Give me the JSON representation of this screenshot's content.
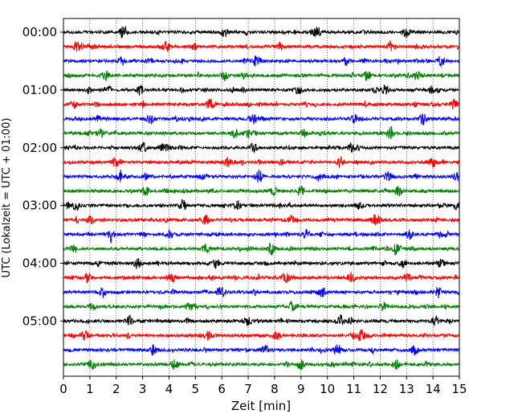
{
  "chart_data": {
    "type": "line",
    "subtype": "seismogram-helicorder",
    "xlabel": "Zeit  [min]",
    "ylabel": "UTC (Lokalzeit = UTC + 01:00)",
    "xlim": [
      0,
      15
    ],
    "x_ticks": [
      "0",
      "1",
      "2",
      "3",
      "4",
      "5",
      "6",
      "7",
      "8",
      "9",
      "10",
      "11",
      "12",
      "13",
      "14",
      "15"
    ],
    "y_tick_labels": [
      {
        "row": 0,
        "label": "00:00"
      },
      {
        "row": 4,
        "label": "01:00"
      },
      {
        "row": 8,
        "label": "02:00"
      },
      {
        "row": 12,
        "label": "03:00"
      },
      {
        "row": 16,
        "label": "04:00"
      },
      {
        "row": 20,
        "label": "05:00"
      }
    ],
    "grid": "vertical dotted every 1 min",
    "row_minutes": 15,
    "color_cycle": [
      "#000000",
      "#ff0000",
      "#0000ff",
      "#008000"
    ],
    "series": [
      {
        "name": "00:00",
        "color": "#000000",
        "bursts": [
          2.3,
          6.1,
          9.6,
          13.0
        ]
      },
      {
        "name": "00:15",
        "color": "#ff0000",
        "bursts": [
          0.5,
          3.9,
          8.2,
          12.4
        ]
      },
      {
        "name": "00:30",
        "color": "#0000ff",
        "bursts": [
          2.2,
          7.3,
          10.7,
          14.3
        ]
      },
      {
        "name": "00:45",
        "color": "#008000",
        "bursts": [
          1.6,
          6.1,
          11.5,
          13.4
        ]
      },
      {
        "name": "01:00",
        "color": "#000000",
        "bursts": [
          2.9,
          8.9,
          12.2
        ]
      },
      {
        "name": "01:15",
        "color": "#ff0000",
        "bursts": [
          0.4,
          5.6,
          14.8
        ]
      },
      {
        "name": "01:30",
        "color": "#0000ff",
        "bursts": [
          3.3,
          7.2,
          11.0,
          13.6
        ]
      },
      {
        "name": "01:45",
        "color": "#008000",
        "bursts": [
          1.4,
          6.5,
          9.1,
          12.4
        ]
      },
      {
        "name": "02:00",
        "color": "#000000",
        "bursts": [
          3.0,
          3.8,
          7.2,
          10.9
        ]
      },
      {
        "name": "02:15",
        "color": "#ff0000",
        "bursts": [
          2.0,
          6.2,
          10.5,
          14.0
        ]
      },
      {
        "name": "02:30",
        "color": "#0000ff",
        "bursts": [
          2.2,
          7.4,
          9.7,
          12.3,
          14.9
        ]
      },
      {
        "name": "02:45",
        "color": "#008000",
        "bursts": [
          3.1,
          9.0,
          12.7
        ]
      },
      {
        "name": "03:00",
        "color": "#000000",
        "bursts": [
          0.5,
          4.5,
          6.6,
          11.2,
          14.9
        ]
      },
      {
        "name": "03:15",
        "color": "#ff0000",
        "bursts": [
          1.0,
          5.4,
          8.6,
          11.8
        ]
      },
      {
        "name": "03:30",
        "color": "#0000ff",
        "bursts": [
          1.8,
          4.0,
          9.2,
          13.1
        ]
      },
      {
        "name": "03:45",
        "color": "#008000",
        "bursts": [
          0.4,
          5.4,
          7.9,
          12.6
        ]
      },
      {
        "name": "04:00",
        "color": "#000000",
        "bursts": [
          2.8,
          5.8,
          12.9,
          14.3
        ]
      },
      {
        "name": "04:15",
        "color": "#ff0000",
        "bursts": [
          0.9,
          4.1,
          8.4,
          10.9,
          13.0
        ]
      },
      {
        "name": "04:30",
        "color": "#0000ff",
        "bursts": [
          1.5,
          6.0,
          9.8,
          14.2
        ]
      },
      {
        "name": "04:45",
        "color": "#008000",
        "bursts": [
          1.1,
          4.8,
          8.7,
          12.1
        ]
      },
      {
        "name": "05:00",
        "color": "#000000",
        "bursts": [
          2.5,
          7.0,
          10.5,
          14.1
        ]
      },
      {
        "name": "05:15",
        "color": "#ff0000",
        "bursts": [
          0.8,
          5.5,
          8.1,
          11.3
        ]
      },
      {
        "name": "05:30",
        "color": "#0000ff",
        "bursts": [
          3.4,
          7.6,
          10.4,
          13.3
        ]
      },
      {
        "name": "05:45",
        "color": "#008000",
        "bursts": [
          1.1,
          4.2,
          9.0,
          12.6
        ]
      }
    ]
  }
}
